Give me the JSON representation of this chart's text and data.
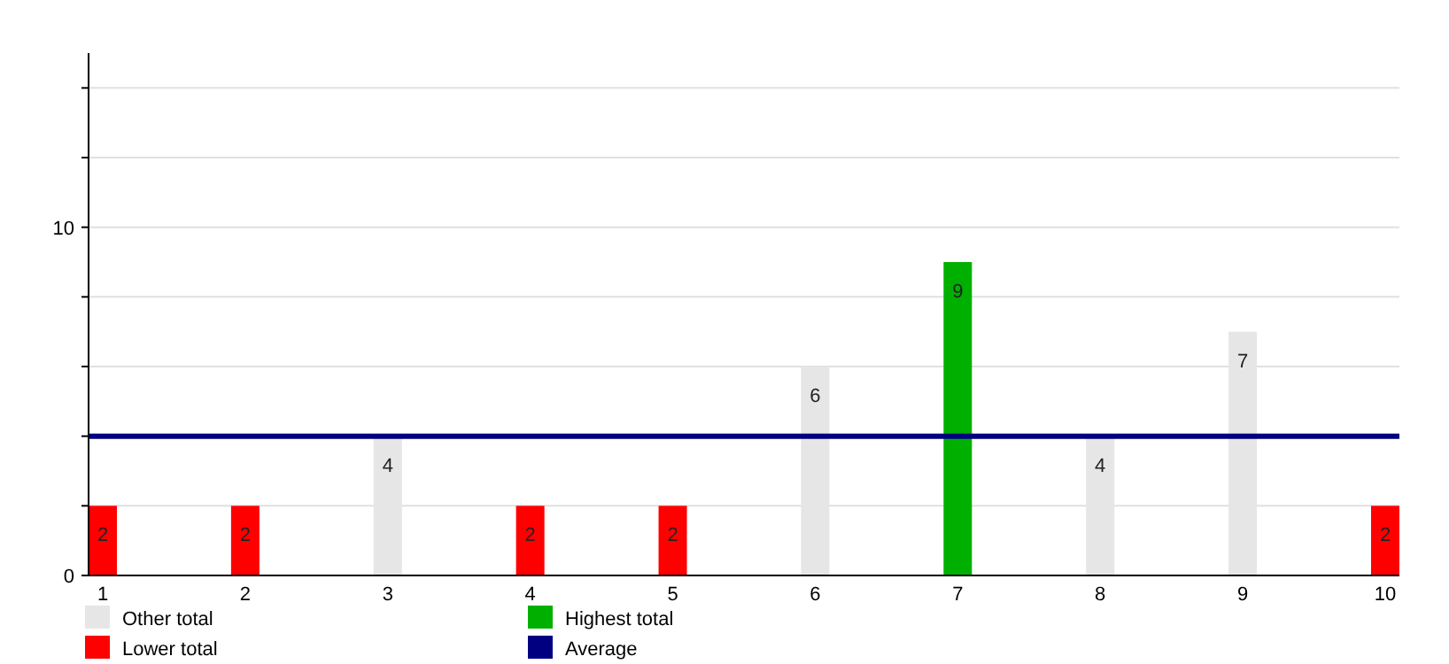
{
  "chart_data": {
    "type": "bar",
    "categories": [
      "1",
      "2",
      "3",
      "4",
      "5",
      "6",
      "7",
      "8",
      "9",
      "10"
    ],
    "series": [
      {
        "name": "Other total",
        "color": "#e6e6e6",
        "values": [
          null,
          null,
          4,
          null,
          null,
          6,
          null,
          4,
          7,
          null
        ]
      },
      {
        "name": "Highest total",
        "color": "#00b000",
        "values": [
          null,
          null,
          null,
          null,
          null,
          null,
          9,
          null,
          null,
          null
        ]
      },
      {
        "name": "Lower total",
        "color": "#ff0000",
        "values": [
          2,
          2,
          null,
          2,
          2,
          null,
          null,
          null,
          null,
          2
        ]
      }
    ],
    "ylim": [
      0,
      15
    ],
    "yticks": [
      0,
      {
        "value": 2,
        "label": null
      },
      {
        "value": 4,
        "label": null
      },
      {
        "value": 6,
        "label": null
      },
      {
        "value": 8,
        "label": null
      },
      10,
      {
        "value": 12,
        "label": null
      },
      {
        "value": 14,
        "label": null
      }
    ],
    "grid": "y",
    "data_labels": true,
    "legend": "bottom",
    "ref_lines": [
      {
        "axis": "y",
        "value": 4,
        "label": "Average",
        "color": "#000080"
      }
    ]
  }
}
